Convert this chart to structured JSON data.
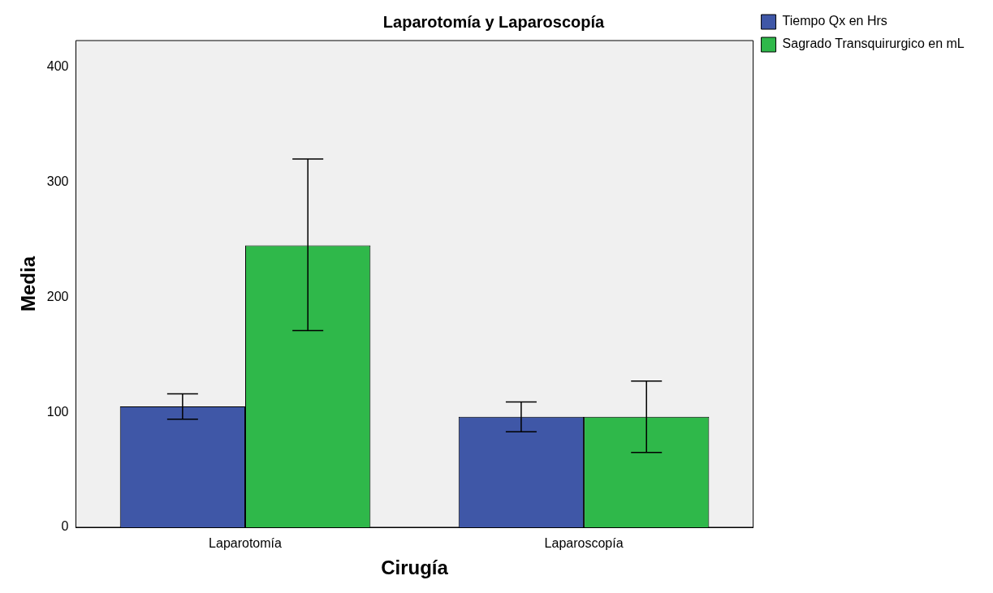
{
  "chart_data": {
    "type": "bar",
    "title": "Laparotomía y Laparoscopía",
    "xlabel": "Cirugía",
    "ylabel": "Media",
    "categories": [
      "Laparotomía",
      "Laparoscopía"
    ],
    "series": [
      {
        "name": "Tiempo Qx en Hrs",
        "color": "#3f57a7",
        "values": [
          105,
          96
        ],
        "errors": [
          [
            94,
            116
          ],
          [
            83,
            109
          ]
        ]
      },
      {
        "name": "Sagrado Transquirurgico en mL",
        "color": "#2fb84a",
        "values": [
          245,
          96
        ],
        "errors": [
          [
            171,
            320
          ],
          [
            65,
            127
          ]
        ]
      }
    ],
    "ylim": [
      0,
      423
    ],
    "yticks": [
      0,
      100,
      200,
      300,
      400
    ],
    "grid": false,
    "legend": "top right"
  }
}
